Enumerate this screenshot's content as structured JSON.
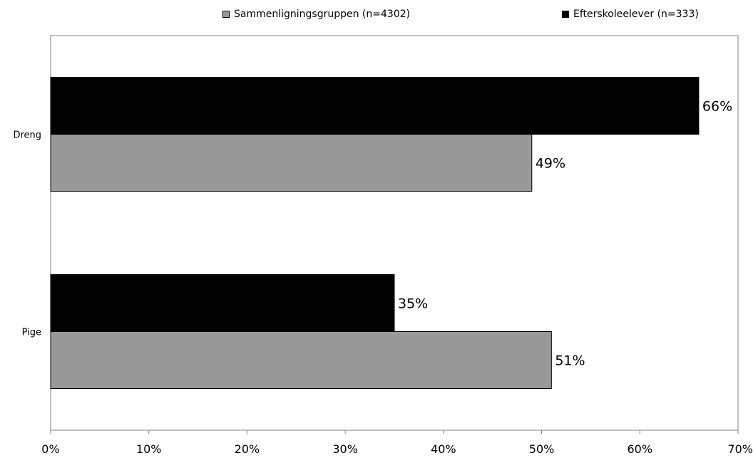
{
  "chart_data": {
    "type": "bar",
    "orientation": "horizontal",
    "categories": [
      "Dreng",
      "Pige"
    ],
    "series": [
      {
        "name": "Efterskoleelever (n=333)",
        "values": [
          66,
          35
        ],
        "labels": [
          "66%",
          "35%"
        ],
        "color": "#000000"
      },
      {
        "name": "Sammenligningsgruppen (n=4302)",
        "values": [
          49,
          51
        ],
        "labels": [
          "49%",
          "51%"
        ],
        "color": "#999999"
      }
    ],
    "xlim": [
      0,
      70
    ],
    "xticks": [
      0,
      10,
      20,
      30,
      40,
      50,
      60,
      70
    ],
    "xtick_labels": [
      "0%",
      "10%",
      "20%",
      "30%",
      "40%",
      "50%",
      "60%",
      "70%"
    ],
    "legend_position": "top",
    "grid": false
  }
}
